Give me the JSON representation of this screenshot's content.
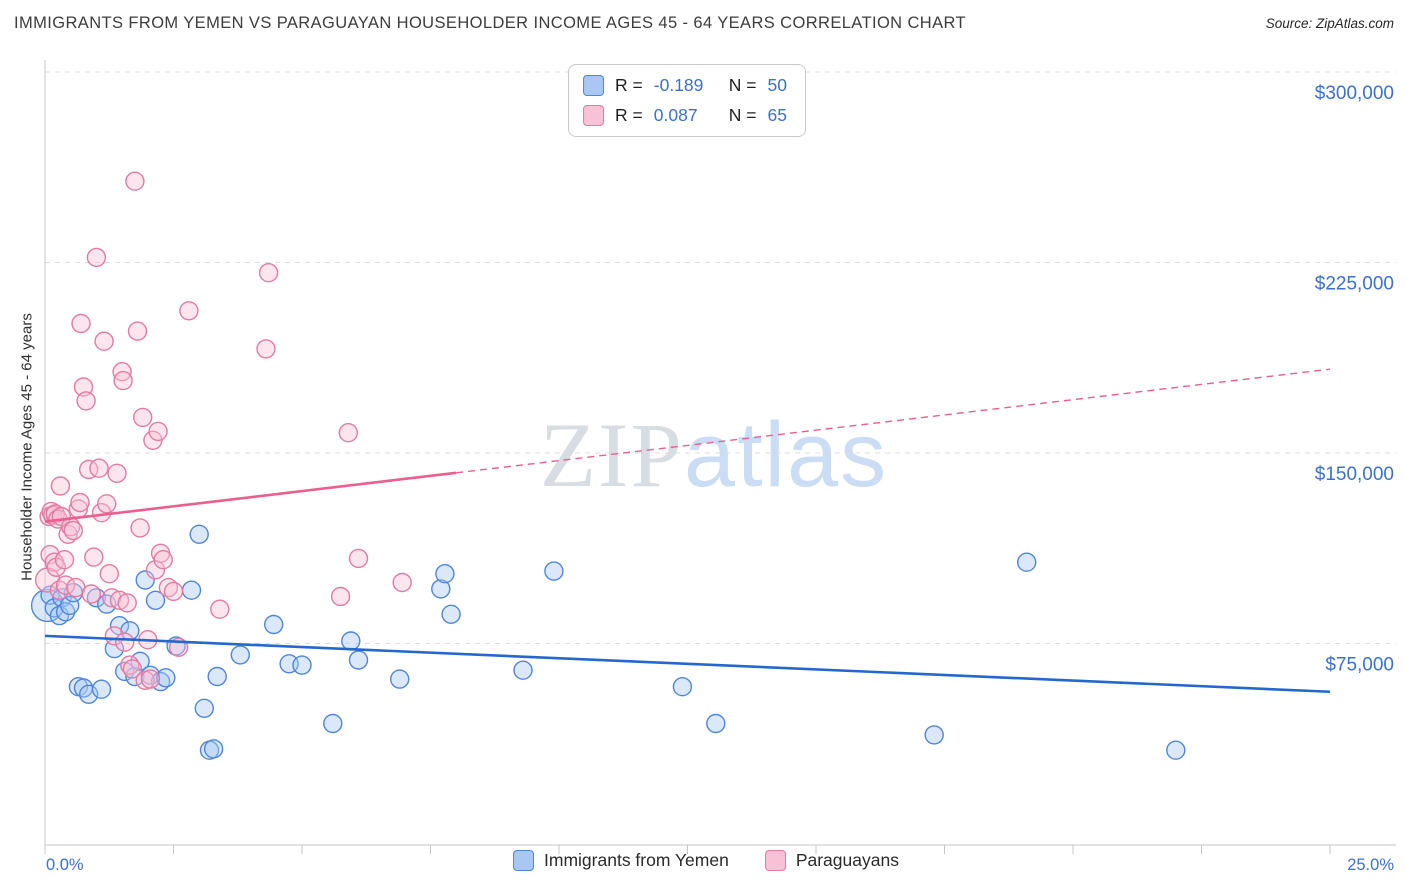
{
  "header": {
    "title": "IMMIGRANTS FROM YEMEN VS PARAGUAYAN HOUSEHOLDER INCOME AGES 45 - 64 YEARS CORRELATION CHART",
    "source": "Source: ZipAtlas.com"
  },
  "watermark": {
    "zip": "ZIP",
    "atlas": "atlas"
  },
  "axes": {
    "y_label": "Householder Income Ages 45 - 64 years",
    "x_min_label": "0.0%",
    "x_max_label": "25.0%"
  },
  "legend_box": {
    "rows": [
      {
        "series_key": "yemen",
        "r_label": "R =",
        "r_value": "-0.189",
        "n_label": "N =",
        "n_value": "50"
      },
      {
        "series_key": "paraguayan",
        "r_label": "R =",
        "r_value": "0.087",
        "n_label": "N =",
        "n_value": "65"
      }
    ]
  },
  "bottom_legend": {
    "items": [
      {
        "series_key": "yemen",
        "label": "Immigrants from Yemen"
      },
      {
        "series_key": "paraguayan",
        "label": "Paraguayans"
      }
    ]
  },
  "colors": {
    "yemen_fill": "#a8c8f3",
    "yemen_stroke": "#4f86dc",
    "yemen_line": "#2468cf",
    "paraguayan_fill": "#f8c1d5",
    "paraguayan_stroke": "#e27ba3",
    "paraguayan_line": "#ea5e90",
    "tick_label": "#3a71cf",
    "grid": "#dcdcdc",
    "axis": "#c6c6c6",
    "title": "#3d3d3d",
    "watermark_zip": "#d8dce3",
    "watermark_atlas": "#cbdcf5"
  },
  "chart_data": {
    "type": "scatter",
    "title": "Immigrants from Yemen vs Paraguayan Householder Income Ages 45 - 64 years",
    "xlabel_min": "0.0%",
    "xlabel_max": "25.0%",
    "ylabel": "Householder Income Ages 45 - 64 years",
    "xlim": [
      0,
      25
    ],
    "ylim": [
      0,
      310000
    ],
    "grid": "horizontal-dashed",
    "legend_position": "bottom-center",
    "y_gridlines": [
      300000,
      225000,
      150000,
      75000
    ],
    "y_tick_labels": [
      "$300,000",
      "$225,000",
      "$150,000",
      "$75,000"
    ],
    "x_tick_step_pct": 2.5,
    "series": [
      {
        "key": "yemen",
        "name": "Immigrants from Yemen",
        "R": -0.189,
        "N": 50,
        "points": [
          [
            0.05,
            90000,
            16
          ],
          [
            0.1,
            94000
          ],
          [
            0.18,
            89000
          ],
          [
            0.28,
            86000
          ],
          [
            0.33,
            93000
          ],
          [
            0.4,
            87500
          ],
          [
            0.48,
            90000
          ],
          [
            0.55,
            95000
          ],
          [
            0.65,
            58000
          ],
          [
            0.75,
            57500
          ],
          [
            0.85,
            55000
          ],
          [
            1.0,
            93000
          ],
          [
            1.1,
            57000
          ],
          [
            1.2,
            90500
          ],
          [
            1.35,
            73000
          ],
          [
            1.45,
            82000
          ],
          [
            1.55,
            64000
          ],
          [
            1.65,
            80000
          ],
          [
            1.75,
            62000
          ],
          [
            1.85,
            68000
          ],
          [
            1.95,
            100000
          ],
          [
            2.05,
            62500
          ],
          [
            2.15,
            92000
          ],
          [
            2.25,
            60000
          ],
          [
            2.35,
            61500
          ],
          [
            2.55,
            74000
          ],
          [
            2.85,
            96000
          ],
          [
            3.0,
            118000
          ],
          [
            3.1,
            49500
          ],
          [
            3.2,
            33000
          ],
          [
            3.28,
            33500
          ],
          [
            3.35,
            62000
          ],
          [
            3.8,
            70500
          ],
          [
            4.45,
            82500
          ],
          [
            4.75,
            67000
          ],
          [
            5.0,
            66500
          ],
          [
            5.6,
            43500
          ],
          [
            5.95,
            76000
          ],
          [
            6.1,
            68500
          ],
          [
            6.9,
            61000
          ],
          [
            7.7,
            96500
          ],
          [
            7.78,
            102500
          ],
          [
            7.9,
            86500
          ],
          [
            9.3,
            64500
          ],
          [
            9.9,
            103500
          ],
          [
            12.4,
            58000
          ],
          [
            13.05,
            43500
          ],
          [
            17.3,
            39000
          ],
          [
            19.1,
            107000
          ],
          [
            22.0,
            33000
          ]
        ]
      },
      {
        "key": "paraguayan",
        "name": "Paraguayans",
        "R": 0.087,
        "N": 65,
        "points": [
          [
            0.05,
            100000,
            12
          ],
          [
            0.08,
            125000
          ],
          [
            0.1,
            110000
          ],
          [
            0.12,
            127000
          ],
          [
            0.15,
            125500
          ],
          [
            0.18,
            107000
          ],
          [
            0.2,
            126000
          ],
          [
            0.22,
            105000
          ],
          [
            0.25,
            124000
          ],
          [
            0.28,
            96000
          ],
          [
            0.3,
            137000
          ],
          [
            0.32,
            125000
          ],
          [
            0.38,
            108000
          ],
          [
            0.4,
            98000
          ],
          [
            0.45,
            118000
          ],
          [
            0.5,
            121000
          ],
          [
            0.55,
            119500
          ],
          [
            0.6,
            97000
          ],
          [
            0.65,
            128000
          ],
          [
            0.68,
            130500
          ],
          [
            0.7,
            201000
          ],
          [
            0.75,
            176000
          ],
          [
            0.8,
            170500
          ],
          [
            0.85,
            143500
          ],
          [
            0.9,
            94500
          ],
          [
            0.95,
            109000
          ],
          [
            1.0,
            227000
          ],
          [
            1.05,
            144000
          ],
          [
            1.1,
            126500
          ],
          [
            1.15,
            194000
          ],
          [
            1.2,
            130000
          ],
          [
            1.25,
            102500
          ],
          [
            1.3,
            93000
          ],
          [
            1.35,
            78000
          ],
          [
            1.4,
            142000
          ],
          [
            1.45,
            92000
          ],
          [
            1.5,
            182000
          ],
          [
            1.52,
            178500
          ],
          [
            1.55,
            75500
          ],
          [
            1.6,
            91000
          ],
          [
            1.65,
            66500
          ],
          [
            1.7,
            65000
          ],
          [
            1.75,
            257000
          ],
          [
            1.8,
            198000
          ],
          [
            1.85,
            120500
          ],
          [
            1.9,
            164000
          ],
          [
            1.95,
            60500
          ],
          [
            2.0,
            76500
          ],
          [
            2.05,
            61000
          ],
          [
            2.1,
            155000
          ],
          [
            2.15,
            104000
          ],
          [
            2.2,
            158500
          ],
          [
            2.25,
            110500
          ],
          [
            2.3,
            108000
          ],
          [
            2.4,
            97000
          ],
          [
            2.5,
            95500
          ],
          [
            2.6,
            73500
          ],
          [
            2.8,
            206000
          ],
          [
            3.4,
            88500
          ],
          [
            4.3,
            191000
          ],
          [
            4.35,
            221000
          ],
          [
            5.75,
            93500
          ],
          [
            5.9,
            158000
          ],
          [
            6.1,
            108500
          ],
          [
            6.95,
            99000
          ]
        ]
      }
    ],
    "trend_lines": [
      {
        "key": "yemen",
        "x_start": 0,
        "y_start": 78000,
        "x_end": 25,
        "y_end": 56000
      },
      {
        "key": "paraguayan",
        "x_start": 0,
        "y_start": 123000,
        "x_end": 25,
        "y_end": 183000,
        "solid_until_x": 8
      }
    ]
  }
}
